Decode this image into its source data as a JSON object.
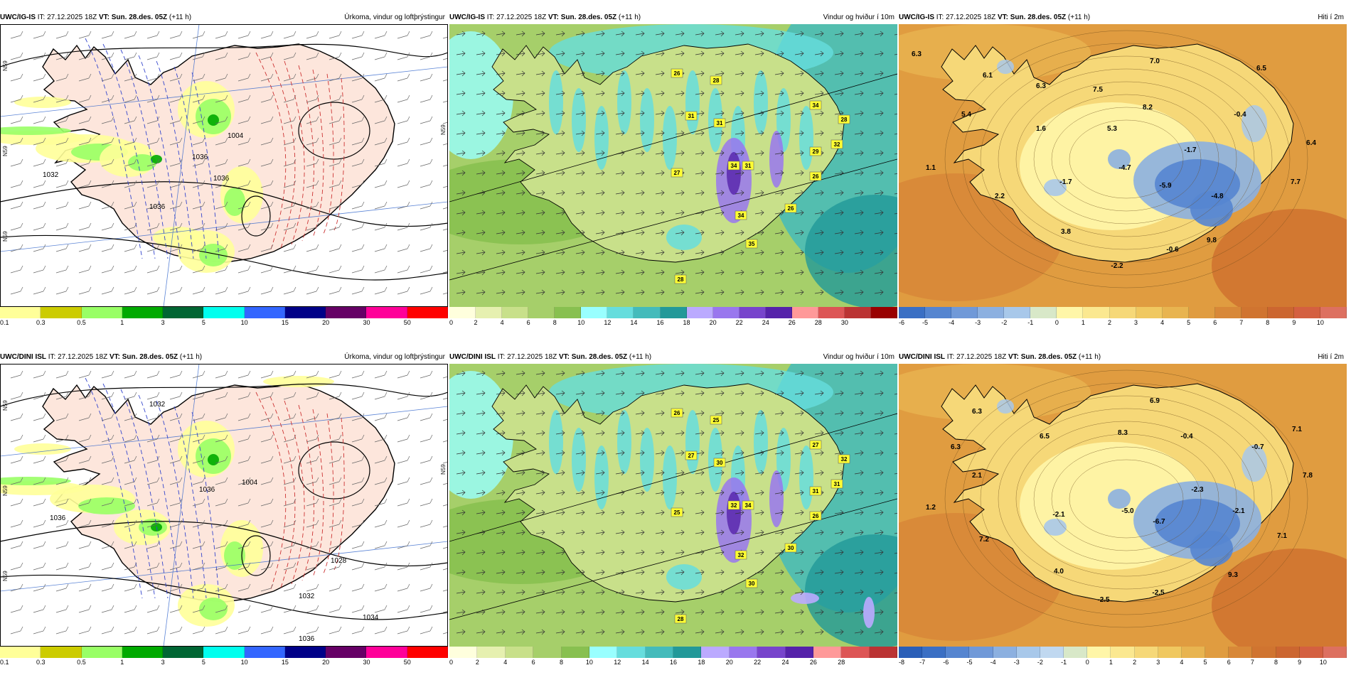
{
  "panels": [
    {
      "id": "p1",
      "model": "UWC/IG-IS",
      "it_label": "IT:",
      "it_value": "27.12.2025 18Z",
      "vt_label": "VT:",
      "vt_value": "Sun. 28.des. 05Z",
      "lead": "(+11 h)",
      "title": "Úrkoma, vindur og loftþrýstingur",
      "type": "precip",
      "legend_colors": [
        "#ffff99",
        "#cccc00",
        "#99ff66",
        "#00aa00",
        "#006633",
        "#00ffee",
        "#3366ff",
        "#000088",
        "#660066",
        "#ff0099",
        "#ff0000"
      ],
      "legend_ticks": [
        "0.1",
        "0.3",
        "0.5",
        "1",
        "3",
        "5",
        "10",
        "15",
        "20",
        "30",
        "50"
      ],
      "isobar_labels": [
        "1036",
        "1032",
        "1036",
        "1036",
        "1004"
      ],
      "side_labels": [
        "N59",
        "N59",
        "N59",
        "N59"
      ]
    },
    {
      "id": "p2",
      "model": "UWC/IG-IS",
      "it_label": "IT:",
      "it_value": "27.12.2025 18Z",
      "vt_label": "VT:",
      "vt_value": "Sun. 28.des. 05Z",
      "lead": "(+11 h)",
      "title": "Vindur og hviður í 10m",
      "type": "wind",
      "legend_colors": [
        "#ffffdd",
        "#e6f0b0",
        "#c8e08a",
        "#a6cf6a",
        "#88c050",
        "#99ffff",
        "#66dddd",
        "#44bbbb",
        "#229999",
        "#bbaaff",
        "#9977ee",
        "#7744cc",
        "#5522aa",
        "#ff9999",
        "#dd5555",
        "#bb3333",
        "#990000"
      ],
      "legend_ticks": [
        "0",
        "2",
        "4",
        "6",
        "8",
        "10",
        "12",
        "14",
        "16",
        "18",
        "20",
        "22",
        "24",
        "26",
        "28",
        "30"
      ],
      "gusts": [
        "26",
        "28",
        "31",
        "31",
        "34",
        "28",
        "34",
        "29",
        "32",
        "27",
        "31",
        "26",
        "26",
        "34",
        "35",
        "28"
      ]
    },
    {
      "id": "p3",
      "model": "UWC/IG-IS",
      "it_label": "IT:",
      "it_value": "27.12.2025 18Z",
      "vt_label": "VT:",
      "vt_value": "Sun. 28.des. 05Z",
      "lead": "(+11 h)",
      "title": "Hiti í 2m",
      "type": "temp",
      "legend_colors": [
        "#3a6fc4",
        "#5585d0",
        "#7099d8",
        "#8cb0e0",
        "#a8c8ea",
        "#d8e8c8",
        "#fff6a8",
        "#fbe890",
        "#f6d878",
        "#f0c860",
        "#e8b450",
        "#e09c40",
        "#d88838",
        "#d07430",
        "#cc6630",
        "#d46040",
        "#dd7060"
      ],
      "legend_ticks": [
        "-6",
        "-5",
        "-4",
        "-3",
        "-2",
        "-1",
        "0",
        "1",
        "2",
        "3",
        "4",
        "5",
        "6",
        "7",
        "8",
        "9",
        "10"
      ],
      "temps": [
        "6.3",
        "6.1",
        "6.3",
        "7.5",
        "7.0",
        "6.5",
        "8.2",
        "-0.4",
        "5.4",
        "1.6",
        "5.3",
        "-1.7",
        "6.4",
        "1.1",
        "-4.7",
        "-1.7",
        "-5.9",
        "-4.8",
        "7.7",
        "2.2",
        "3.8",
        "-0.6",
        "9.8",
        "-2.2"
      ]
    },
    {
      "id": "p4",
      "model": "UWC/DINI ISL",
      "it_label": "IT:",
      "it_value": "27.12.2025 18Z",
      "vt_label": "VT:",
      "vt_value": "Sun. 28.des. 05Z",
      "lead": "(+11 h)",
      "title": "Úrkoma, vindur og loftþrýstingur",
      "type": "precip",
      "legend_colors": [
        "#ffff99",
        "#cccc00",
        "#99ff66",
        "#00aa00",
        "#006633",
        "#00ffee",
        "#3366ff",
        "#000088",
        "#660066",
        "#ff0099",
        "#ff0000"
      ],
      "legend_ticks": [
        "0.1",
        "0.3",
        "0.5",
        "1",
        "3",
        "5",
        "10",
        "15",
        "20",
        "30",
        "50"
      ],
      "isobar_labels": [
        "1032",
        "1036",
        "1036",
        "1004",
        "1028",
        "1032",
        "1034",
        "1036"
      ],
      "side_labels": [
        "N59",
        "N59",
        "N59",
        "N59"
      ]
    },
    {
      "id": "p5",
      "model": "UWC/DINI ISL",
      "it_label": "IT:",
      "it_value": "27.12.2025 18Z",
      "vt_label": "VT:",
      "vt_value": "Sun. 28.des. 05Z",
      "lead": "(+11 h)",
      "title": "Vindur og hviður í 10m",
      "type": "wind",
      "legend_colors": [
        "#ffffdd",
        "#e6f0b0",
        "#c8e08a",
        "#a6cf6a",
        "#88c050",
        "#99ffff",
        "#66dddd",
        "#44bbbb",
        "#229999",
        "#bbaaff",
        "#9977ee",
        "#7744cc",
        "#5522aa",
        "#ff9999",
        "#dd5555",
        "#bb3333"
      ],
      "legend_ticks": [
        "0",
        "2",
        "4",
        "6",
        "8",
        "10",
        "12",
        "14",
        "16",
        "18",
        "20",
        "22",
        "24",
        "26",
        "28"
      ],
      "gusts": [
        "26",
        "25",
        "27",
        "30",
        "32",
        "32",
        "27",
        "31",
        "31",
        "25",
        "34",
        "26",
        "30",
        "32",
        "30",
        "28"
      ]
    },
    {
      "id": "p6",
      "model": "UWC/DINI ISL",
      "it_label": "IT:",
      "it_value": "27.12.2025 18Z",
      "vt_label": "VT:",
      "vt_value": "Sun. 28.des. 05Z",
      "lead": "(+11 h)",
      "title": "Hiti í 2m",
      "type": "temp",
      "legend_colors": [
        "#2a5fb8",
        "#3a6fc4",
        "#5585d0",
        "#7099d8",
        "#8cb0e0",
        "#a8c8ea",
        "#c0d8f0",
        "#d8e8c8",
        "#fff6a8",
        "#fbe890",
        "#f6d878",
        "#f0c860",
        "#e8b450",
        "#e09c40",
        "#d88838",
        "#d07430",
        "#cc6630",
        "#d46040",
        "#dd7060"
      ],
      "legend_ticks": [
        "-8",
        "-7",
        "-6",
        "-5",
        "-4",
        "-3",
        "-2",
        "-1",
        "0",
        "1",
        "2",
        "3",
        "4",
        "5",
        "6",
        "7",
        "8",
        "9",
        "10"
      ],
      "temps": [
        "6.3",
        "6.9",
        "7.1",
        "6.3",
        "6.5",
        "8.3",
        "-0.4",
        "-0.7",
        "2.1",
        "7.8",
        "-2.3",
        "1.2",
        "-2.1",
        "-5.0",
        "-6.7",
        "-2.1",
        "7.2",
        "7.1",
        "4.0",
        "9.3",
        "-2.5",
        "-2.5"
      ]
    }
  ]
}
